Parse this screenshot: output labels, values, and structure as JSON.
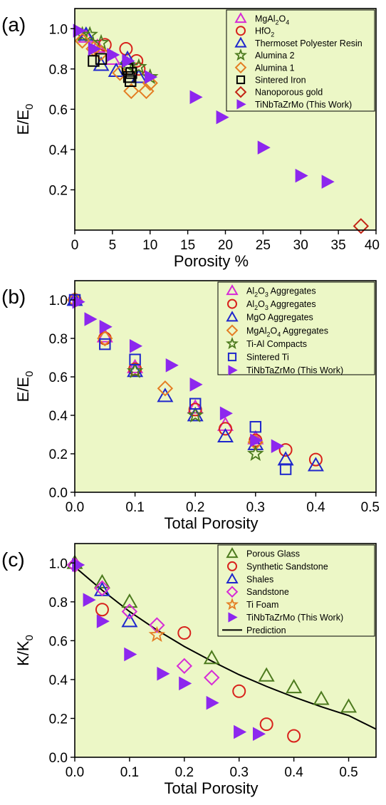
{
  "colors": {
    "plot_background": "#ecf7c6",
    "magenta": "#d62ad6",
    "red": "#d8221c",
    "blue": "#1f27cc",
    "green": "#4c7a1e",
    "orange": "#e47d23",
    "black": "#000000",
    "darkred": "#c22415",
    "purple": "#8d27ee"
  },
  "chart_data": [
    {
      "id": "a",
      "panel_label": "(a)",
      "type": "scatter",
      "xlabel": "Porosity %",
      "ylabel": "E/E0",
      "ylabel_main": "E/E",
      "ylabel_sub": "0",
      "xlim": [
        0,
        40
      ],
      "ylim": [
        0,
        1.1
      ],
      "xticks": [
        0,
        5,
        10,
        15,
        20,
        25,
        30,
        35,
        40
      ],
      "xtick_labels": [
        "0",
        "5",
        "10",
        "15",
        "20",
        "25",
        "30",
        "35",
        "40"
      ],
      "yticks": [
        0.2,
        0.4,
        0.6,
        0.8,
        1.0
      ],
      "ytick_labels": [
        "0.2",
        "0.4",
        "0.6",
        "0.8",
        "1.0"
      ],
      "grid": false,
      "legend": "top-right",
      "series": [
        {
          "label": [
            {
              "t": "MgAl"
            },
            {
              "t": "2",
              "sub": true
            },
            {
              "t": "O"
            },
            {
              "t": "4",
              "sub": true
            }
          ],
          "marker": "triangle-up",
          "color": "magenta",
          "points": [
            [
              1.5,
              0.96
            ],
            [
              3,
              0.91
            ],
            [
              5,
              0.85
            ]
          ]
        },
        {
          "label": [
            {
              "t": "HfO"
            },
            {
              "t": "2",
              "sub": true
            }
          ],
          "marker": "circle",
          "color": "red",
          "points": [
            [
              4,
              0.92
            ],
            [
              6.8,
              0.9
            ],
            [
              8.2,
              0.84
            ],
            [
              8.5,
              0.8
            ]
          ]
        },
        {
          "label": [
            {
              "t": "Thermoset Polyester Resin"
            }
          ],
          "marker": "triangle-up",
          "color": "blue",
          "points": [
            [
              1.5,
              0.97
            ],
            [
              3.5,
              0.82
            ],
            [
              5.5,
              0.79
            ],
            [
              7,
              0.85
            ],
            [
              8.5,
              0.76
            ]
          ]
        },
        {
          "label": [
            {
              "t": "Alumina 2"
            }
          ],
          "marker": "star",
          "color": "green",
          "points": [
            [
              1,
              0.97
            ],
            [
              2,
              0.97
            ],
            [
              3.5,
              0.93
            ],
            [
              7,
              0.82
            ],
            [
              8.5,
              0.81
            ],
            [
              10,
              0.76
            ]
          ]
        },
        {
          "label": [
            {
              "t": "Alumina 1"
            }
          ],
          "marker": "diamond",
          "color": "orange",
          "points": [
            [
              1,
              0.94
            ],
            [
              2.5,
              0.9
            ],
            [
              3.5,
              0.88
            ],
            [
              6,
              0.78
            ],
            [
              7.5,
              0.69
            ],
            [
              9.5,
              0.69
            ],
            [
              10,
              0.73
            ]
          ]
        },
        {
          "label": [
            {
              "t": "Sintered Iron"
            }
          ],
          "marker": "square",
          "color": "black",
          "points": [
            [
              2.5,
              0.84
            ],
            [
              3.5,
              0.85
            ],
            [
              7,
              0.8
            ],
            [
              7.5,
              0.78
            ],
            [
              7.2,
              0.76
            ],
            [
              7.4,
              0.74
            ]
          ]
        },
        {
          "label": [
            {
              "t": "Nanoporous gold"
            }
          ],
          "marker": "diamond",
          "color": "darkred",
          "points": [
            [
              38,
              0.02
            ]
          ]
        },
        {
          "label": [
            {
              "t": "TiNbTaZrMo (This Work)"
            }
          ],
          "marker": "triangle-right",
          "color": "purple",
          "points": [
            [
              0.5,
              0.99
            ],
            [
              2.5,
              0.9
            ],
            [
              5,
              0.87
            ],
            [
              7,
              0.84
            ],
            [
              10,
              0.76
            ],
            [
              16,
              0.66
            ],
            [
              19.5,
              0.56
            ],
            [
              25,
              0.41
            ],
            [
              30,
              0.27
            ],
            [
              33.5,
              0.24
            ]
          ]
        }
      ]
    },
    {
      "id": "b",
      "panel_label": "(b)",
      "type": "scatter",
      "xlabel": "Total Porosity",
      "ylabel": "E/E0",
      "ylabel_main": "E/E",
      "ylabel_sub": "0",
      "xlim": [
        0,
        0.5
      ],
      "ylim": [
        0,
        1.1
      ],
      "xticks": [
        0,
        0.1,
        0.2,
        0.3,
        0.4,
        0.5
      ],
      "xtick_labels": [
        "0.0",
        "0.1",
        "0.2",
        "0.3",
        "0.4",
        "0.5"
      ],
      "yticks": [
        0,
        0.2,
        0.4,
        0.6,
        0.8,
        1.0
      ],
      "ytick_labels": [
        "0.0",
        "0.2",
        "0.4",
        "0.6",
        "0.8",
        "1.0"
      ],
      "grid": false,
      "legend": "top-right",
      "series": [
        {
          "label": [
            {
              "t": "Al"
            },
            {
              "t": "2",
              "sub": true
            },
            {
              "t": "O"
            },
            {
              "t": "3",
              "sub": true
            },
            {
              "t": " Aggregates"
            }
          ],
          "marker": "triangle-up",
          "color": "magenta",
          "points": [
            [
              0.05,
              0.81
            ],
            [
              0.1,
              0.65
            ],
            [
              0.2,
              0.44
            ],
            [
              0.25,
              0.35
            ],
            [
              0.3,
              0.28
            ]
          ]
        },
        {
          "label": [
            {
              "t": "Al"
            },
            {
              "t": "2",
              "sub": true
            },
            {
              "t": "O"
            },
            {
              "t": "3",
              "sub": true
            },
            {
              "t": " Aggregates"
            }
          ],
          "marker": "circle",
          "color": "red",
          "points": [
            [
              0,
              1.0
            ],
            [
              0.05,
              0.8
            ],
            [
              0.1,
              0.64
            ],
            [
              0.2,
              0.43
            ],
            [
              0.25,
              0.33
            ],
            [
              0.3,
              0.27
            ],
            [
              0.35,
              0.22
            ],
            [
              0.4,
              0.17
            ]
          ]
        },
        {
          "label": [
            {
              "t": "MgO Aggregates"
            }
          ],
          "marker": "triangle-up",
          "color": "blue",
          "points": [
            [
              0,
              1.0
            ],
            [
              0.1,
              0.63
            ],
            [
              0.15,
              0.5
            ],
            [
              0.2,
              0.4
            ],
            [
              0.25,
              0.29
            ],
            [
              0.3,
              0.25
            ],
            [
              0.35,
              0.17
            ],
            [
              0.4,
              0.14
            ]
          ]
        },
        {
          "label": [
            {
              "t": "MgAl"
            },
            {
              "t": "2",
              "sub": true
            },
            {
              "t": "O"
            },
            {
              "t": "4",
              "sub": true
            },
            {
              "t": " Aggregates"
            }
          ],
          "marker": "diamond",
          "color": "orange",
          "points": [
            [
              0,
              1.0
            ],
            [
              0.05,
              0.8
            ],
            [
              0.15,
              0.54
            ],
            [
              0.3,
              0.26
            ]
          ]
        },
        {
          "label": [
            {
              "t": "Ti-Al Compacts"
            }
          ],
          "marker": "star",
          "color": "green",
          "points": [
            [
              0.1,
              0.63
            ],
            [
              0.2,
              0.4
            ],
            [
              0.3,
              0.2
            ]
          ]
        },
        {
          "label": [
            {
              "t": "Sintered Ti"
            }
          ],
          "marker": "square",
          "color": "blue",
          "points": [
            [
              0,
              1.0
            ],
            [
              0.05,
              0.77
            ],
            [
              0.1,
              0.69
            ],
            [
              0.2,
              0.46
            ],
            [
              0.3,
              0.34
            ],
            [
              0.35,
              0.12
            ]
          ]
        },
        {
          "label": [
            {
              "t": "TiNbTaZrMo (This Work)"
            }
          ],
          "marker": "triangle-right",
          "color": "purple",
          "points": [
            [
              0.005,
              0.99
            ],
            [
              0.025,
              0.9
            ],
            [
              0.05,
              0.86
            ],
            [
              0.1,
              0.76
            ],
            [
              0.16,
              0.66
            ],
            [
              0.2,
              0.56
            ],
            [
              0.25,
              0.41
            ],
            [
              0.3,
              0.27
            ],
            [
              0.335,
              0.24
            ]
          ]
        }
      ]
    },
    {
      "id": "c",
      "panel_label": "(c)",
      "type": "scatter",
      "xlabel": "Total Porosity",
      "ylabel": "K/K0",
      "ylabel_main": "K/K",
      "ylabel_sub": "0",
      "xlim": [
        0,
        0.55
      ],
      "ylim": [
        0,
        1.1
      ],
      "xticks": [
        0,
        0.1,
        0.2,
        0.3,
        0.4,
        0.5
      ],
      "xtick_labels": [
        "0.0",
        "0.1",
        "0.2",
        "0.3",
        "0.4",
        "0.5"
      ],
      "yticks": [
        0,
        0.2,
        0.4,
        0.6,
        0.8,
        1.0
      ],
      "ytick_labels": [
        "0.0",
        "0.2",
        "0.4",
        "0.6",
        "0.8",
        "1.0"
      ],
      "grid": false,
      "legend": "top-right",
      "series": [
        {
          "label": [
            {
              "t": "Porous Glass"
            }
          ],
          "marker": "triangle-up",
          "color": "green",
          "points": [
            [
              0,
              1.0
            ],
            [
              0.05,
              0.9
            ],
            [
              0.1,
              0.8
            ],
            [
              0.25,
              0.51
            ],
            [
              0.35,
              0.42
            ],
            [
              0.4,
              0.36
            ],
            [
              0.45,
              0.3
            ],
            [
              0.5,
              0.26
            ]
          ]
        },
        {
          "label": [
            {
              "t": "Synthetic Sandstone"
            }
          ],
          "marker": "circle",
          "color": "red",
          "points": [
            [
              0.05,
              0.76
            ],
            [
              0.2,
              0.64
            ],
            [
              0.3,
              0.34
            ],
            [
              0.35,
              0.17
            ],
            [
              0.4,
              0.11
            ]
          ]
        },
        {
          "label": [
            {
              "t": "Shales"
            }
          ],
          "marker": "triangle-up",
          "color": "blue",
          "points": [
            [
              0.05,
              0.86
            ],
            [
              0.1,
              0.7
            ]
          ]
        },
        {
          "label": [
            {
              "t": "Sandstone"
            }
          ],
          "marker": "diamond",
          "color": "magenta",
          "points": [
            [
              0,
              0.99
            ],
            [
              0.05,
              0.87
            ],
            [
              0.1,
              0.75
            ],
            [
              0.15,
              0.68
            ],
            [
              0.2,
              0.47
            ],
            [
              0.25,
              0.41
            ]
          ]
        },
        {
          "label": [
            {
              "t": "Ti Foam"
            }
          ],
          "marker": "star",
          "color": "orange",
          "points": [
            [
              0.15,
              0.63
            ]
          ]
        },
        {
          "label": [
            {
              "t": "TiNbTaZrMo (This Work)"
            }
          ],
          "marker": "triangle-right",
          "color": "purple",
          "points": [
            [
              0.005,
              0.99
            ],
            [
              0.025,
              0.81
            ],
            [
              0.05,
              0.7
            ],
            [
              0.1,
              0.53
            ],
            [
              0.16,
              0.43
            ],
            [
              0.2,
              0.38
            ],
            [
              0.25,
              0.28
            ],
            [
              0.3,
              0.13
            ],
            [
              0.335,
              0.12
            ]
          ]
        },
        {
          "label": [
            {
              "t": "Prediction"
            }
          ],
          "marker": "line",
          "color": "black",
          "curve": {
            "x": [
              0,
              0.05,
              0.1,
              0.15,
              0.2,
              0.25,
              0.3,
              0.35,
              0.4,
              0.45,
              0.5,
              0.55
            ],
            "y": [
              0.98,
              0.86,
              0.75,
              0.655,
              0.57,
              0.495,
              0.425,
              0.365,
              0.31,
              0.26,
              0.215,
              0.145
            ]
          }
        }
      ]
    }
  ]
}
